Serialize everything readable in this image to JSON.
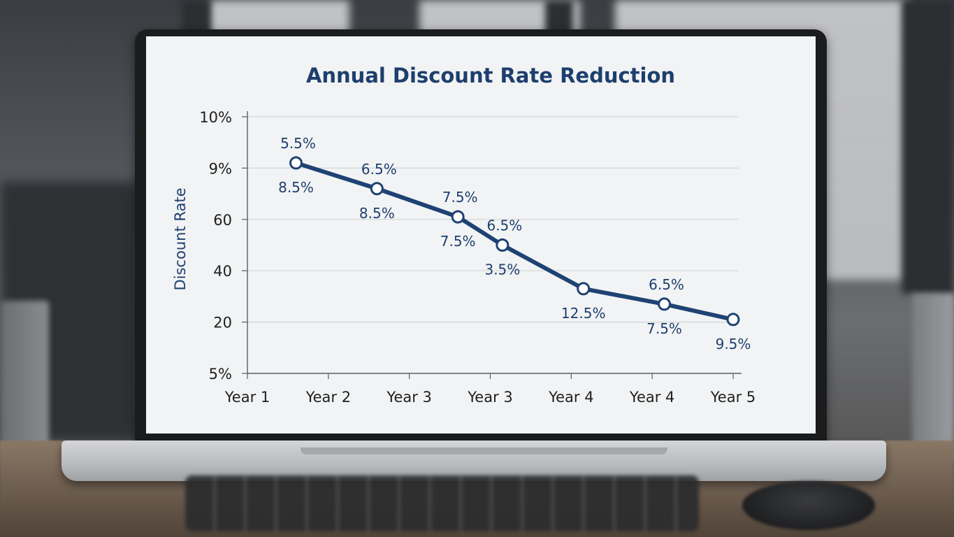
{
  "chart_data": {
    "type": "line",
    "title": "Annual Discount Rate Reduction",
    "ylabel": "Discount Rate",
    "xlabel": "",
    "categories": [
      "Year 1",
      "Year 2",
      "Year 3",
      "Year 3",
      "Year 4",
      "Year 4",
      "Year 5"
    ],
    "y_tick_labels": [
      "10%",
      "9%",
      "60",
      "40",
      "20",
      "5%"
    ],
    "grid": true,
    "series": [
      {
        "color": "#1e4273",
        "points": [
          {
            "x_index": 0.6,
            "y_tick_position": 0.9,
            "label_above": "5.5%",
            "label_below": "8.5%"
          },
          {
            "x_index": 1.6,
            "y_tick_position": 1.4,
            "label_above": "6.5%",
            "label_below": "8.5%"
          },
          {
            "x_index": 2.6,
            "y_tick_position": 1.95,
            "label_above": "7.5%",
            "label_below": "7.5%"
          },
          {
            "x_index": 3.15,
            "y_tick_position": 2.5,
            "label_above": "6.5%",
            "label_below": "3.5%"
          },
          {
            "x_index": 4.15,
            "y_tick_position": 3.35,
            "label_above": "",
            "label_below": "12.5%"
          },
          {
            "x_index": 5.15,
            "y_tick_position": 3.65,
            "label_above": "6.5%",
            "label_below": "7.5%"
          },
          {
            "x_index": 6.0,
            "y_tick_position": 3.95,
            "label_above": "",
            "label_below": "9.5%"
          }
        ]
      }
    ]
  },
  "colors": {
    "line": "#1e4273",
    "title": "#1d3f6e",
    "grid": "#d2d4d7",
    "axis": "#5a5c60",
    "screen_bg": "#f2f3f4"
  }
}
